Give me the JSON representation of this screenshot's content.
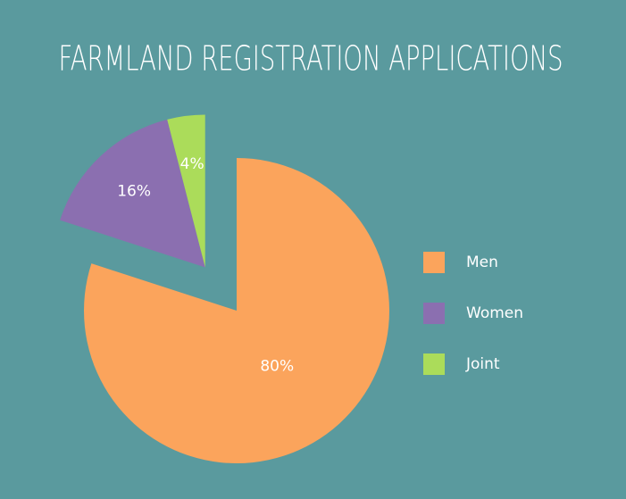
{
  "chart_data": {
    "type": "pie",
    "title": "FARMLAND REGISTRATION APPLICATIONS",
    "categories": [
      "Men",
      "Women",
      "Joint"
    ],
    "values": [
      80,
      16,
      4
    ],
    "value_labels": [
      "80%",
      "16%",
      "4%"
    ],
    "colors": [
      "#fba45c",
      "#8b6fb0",
      "#abdc5a"
    ],
    "legend": "right"
  }
}
